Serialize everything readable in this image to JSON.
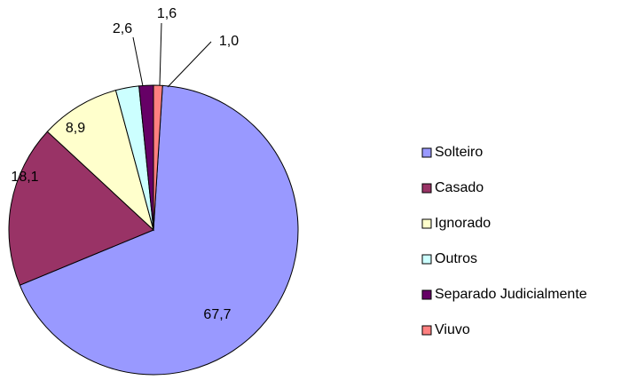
{
  "chart_data": {
    "type": "pie",
    "categories": [
      "Solteiro",
      "Casado",
      "Ignorado",
      "Outros",
      "Separado Judicialmente",
      "Viuvo"
    ],
    "values": [
      67.7,
      18.1,
      8.9,
      2.6,
      1.6,
      1.0
    ],
    "value_labels": [
      "67,7",
      "18,1",
      "8,9",
      "2,6",
      "1,6",
      "1,0"
    ],
    "colors": [
      "#9999ff",
      "#993366",
      "#ffffcc",
      "#ccffff",
      "#660066",
      "#ff8080"
    ],
    "legend": "right"
  }
}
